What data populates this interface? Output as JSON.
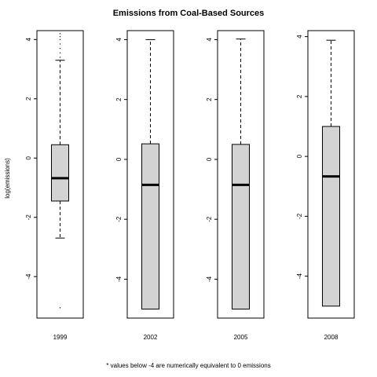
{
  "chart_data": {
    "type": "boxplot",
    "title": "Emissions from Coal-Based Sources",
    "ylabel": "log(emissions)",
    "footnote": "* values below -4 are numerically equivalent to 0 emissions",
    "panels": [
      {
        "category": "1999",
        "ylim": [
          -5.4,
          4.3
        ],
        "ticks": [
          4,
          2,
          0,
          -2,
          -4
        ],
        "tick_labels": [
          "4",
          "2",
          "0",
          "-2",
          "-4"
        ],
        "box": {
          "whisker_low": -2.7,
          "q1": -1.45,
          "median": -0.68,
          "q3": 0.45,
          "whisker_high": 3.3
        },
        "outliers": [
          3.4,
          3.55,
          3.7,
          3.85,
          4.0,
          4.1,
          4.2,
          -5.05
        ]
      },
      {
        "category": "2002",
        "ylim": [
          -5.3,
          4.3
        ],
        "ticks": [
          4,
          2,
          0,
          -2,
          -4
        ],
        "tick_labels": [
          "4",
          "2",
          "0",
          "-2",
          "-4"
        ],
        "box": {
          "whisker_low": -5.0,
          "q1": -5.0,
          "median": -0.85,
          "q3": 0.52,
          "whisker_high": 4.0
        },
        "outliers": []
      },
      {
        "category": "2005",
        "ylim": [
          -5.3,
          4.3
        ],
        "ticks": [
          4,
          2,
          0,
          -2,
          -4
        ],
        "tick_labels": [
          "4",
          "2",
          "0",
          "-2",
          "-4"
        ],
        "box": {
          "whisker_low": -5.0,
          "q1": -5.0,
          "median": -0.85,
          "q3": 0.5,
          "whisker_high": 4.02
        },
        "outliers": []
      },
      {
        "category": "2008",
        "ylim": [
          -5.4,
          4.2
        ],
        "ticks": [
          4,
          2,
          0,
          -2,
          -4
        ],
        "tick_labels": [
          "4",
          "2",
          "0",
          "-2",
          "-4"
        ],
        "box": {
          "whisker_low": -5.0,
          "q1": -5.0,
          "median": -0.67,
          "q3": 1.0,
          "whisker_high": 3.88
        },
        "outliers": []
      }
    ],
    "colors": {
      "box_fill": "#d3d3d3",
      "stroke": "#000000"
    },
    "grid": false,
    "legend": "none"
  }
}
